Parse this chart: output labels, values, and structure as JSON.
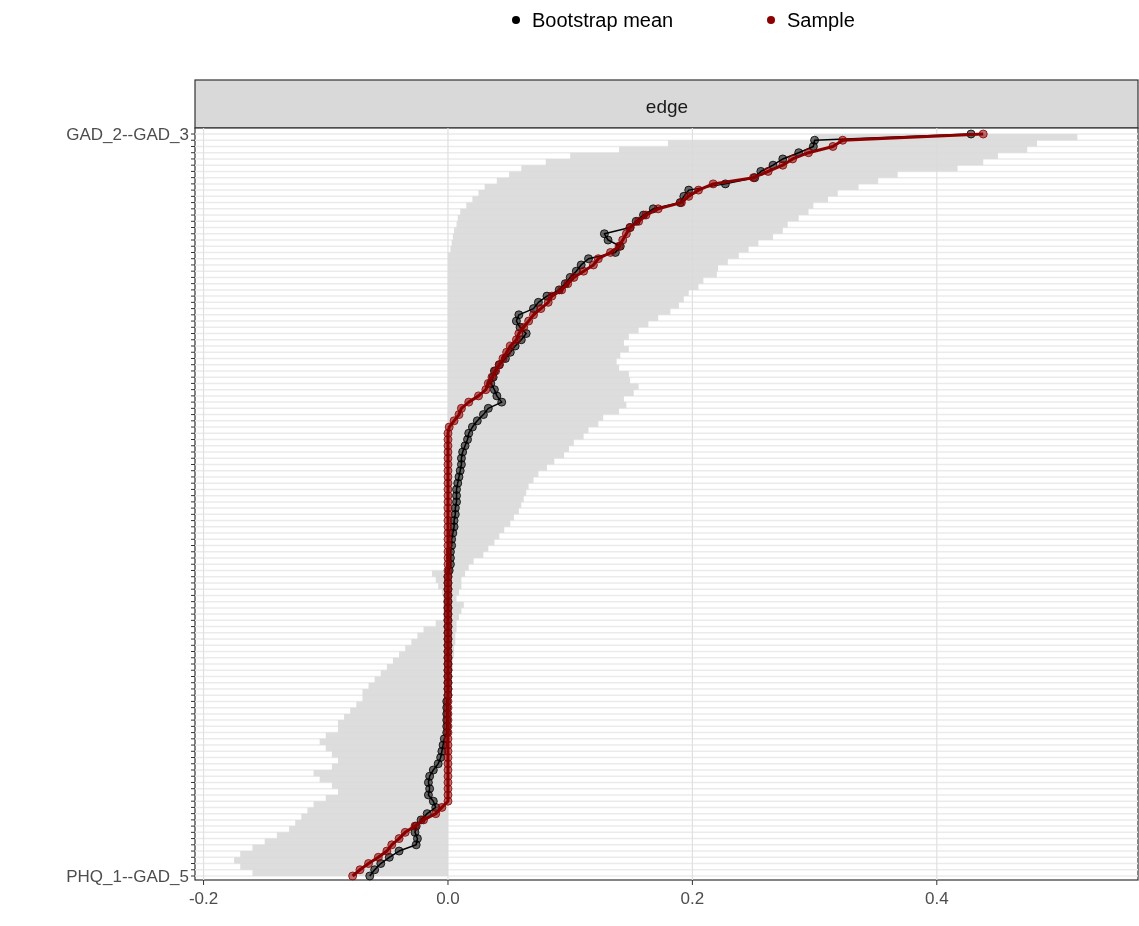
{
  "chart_data": {
    "type": "line",
    "title": "edge",
    "categories": [
      "GAD_2--GAD_3",
      null,
      null,
      null,
      null,
      null,
      null,
      null,
      null,
      null,
      null,
      null,
      null,
      null,
      null,
      null,
      null,
      null,
      null,
      null,
      null,
      null,
      null,
      null,
      null,
      null,
      null,
      null,
      null,
      null,
      null,
      null,
      null,
      null,
      null,
      null,
      null,
      null,
      null,
      null,
      null,
      null,
      null,
      null,
      null,
      null,
      null,
      null,
      null,
      null,
      null,
      null,
      null,
      null,
      null,
      null,
      null,
      null,
      null,
      null,
      null,
      null,
      null,
      null,
      null,
      null,
      null,
      null,
      null,
      null,
      null,
      null,
      null,
      null,
      null,
      null,
      null,
      null,
      null,
      null,
      null,
      null,
      null,
      null,
      null,
      null,
      null,
      null,
      null,
      null,
      null,
      null,
      null,
      null,
      null,
      null,
      null,
      null,
      null,
      null,
      null,
      null,
      null,
      null,
      null,
      null,
      null,
      null,
      null,
      null,
      null,
      null,
      null,
      null,
      null,
      null,
      null,
      null,
      null,
      "PHQ_1--GAD_5"
    ],
    "orientation": "horizontal",
    "series": [
      {
        "name": "Bootstrap mean",
        "color": "#000000",
        "values": [
          0.428,
          0.3,
          0.299,
          0.287,
          0.274,
          0.266,
          0.256,
          0.251,
          0.227,
          0.197,
          0.193,
          0.19,
          0.168,
          0.16,
          0.154,
          0.149,
          0.128,
          0.131,
          0.141,
          0.137,
          0.115,
          0.109,
          0.105,
          0.1,
          0.096,
          0.091,
          0.081,
          0.074,
          0.07,
          0.058,
          0.056,
          0.059,
          0.064,
          0.06,
          0.055,
          0.051,
          0.047,
          0.042,
          0.038,
          0.037,
          0.035,
          0.038,
          0.04,
          0.044,
          0.033,
          0.029,
          0.024,
          0.02,
          0.017,
          0.016,
          0.014,
          0.012,
          0.011,
          0.011,
          0.01,
          0.009,
          0.008,
          0.007,
          0.007,
          0.007,
          0.006,
          0.006,
          0.005,
          0.005,
          0.004,
          0.003,
          0.003,
          0.002,
          0.002,
          0.002,
          0.001,
          0,
          0,
          0,
          0,
          0,
          0,
          0,
          0,
          0,
          0,
          0,
          0,
          0,
          0,
          0,
          0,
          0,
          0,
          0,
          0,
          -0.001,
          -0.001,
          -0.001,
          -0.001,
          -0.001,
          -0.001,
          -0.003,
          -0.004,
          -0.005,
          -0.006,
          -0.008,
          -0.012,
          -0.015,
          -0.016,
          -0.015,
          -0.016,
          -0.012,
          -0.01,
          -0.017,
          -0.022,
          -0.026,
          -0.027,
          -0.025,
          -0.026,
          -0.04,
          -0.048,
          -0.055,
          -0.06,
          -0.064
        ],
        "lower": [
          0.33,
          0.3,
          0.18,
          0.14,
          0.1,
          0.08,
          0.06,
          0.05,
          0.04,
          0.03,
          0.025,
          0.02,
          0.015,
          0.01,
          0.008,
          0.007,
          0.005,
          0.004,
          0.003,
          0.002,
          0,
          0,
          0,
          0,
          0,
          0,
          0,
          0,
          0,
          0,
          0,
          0,
          0,
          0,
          0,
          0,
          0,
          0,
          0,
          0,
          0,
          0,
          0,
          0,
          0,
          0,
          0,
          0,
          0,
          0,
          0,
          0,
          0,
          0,
          0,
          0,
          0,
          0,
          0,
          0,
          0,
          0,
          0,
          0,
          0,
          0,
          0,
          0,
          0,
          0,
          0,
          -0.013,
          -0.01,
          -0.008,
          -0.005,
          -0.004,
          -0.004,
          -0.004,
          -0.004,
          -0.01,
          -0.02,
          -0.025,
          -0.03,
          -0.035,
          -0.04,
          -0.045,
          -0.05,
          -0.055,
          -0.06,
          -0.065,
          -0.07,
          -0.07,
          -0.075,
          -0.08,
          -0.085,
          -0.09,
          -0.09,
          -0.1,
          -0.105,
          -0.1,
          -0.095,
          -0.09,
          -0.095,
          -0.11,
          -0.105,
          -0.095,
          -0.09,
          -0.1,
          -0.11,
          -0.115,
          -0.12,
          -0.125,
          -0.13,
          -0.14,
          -0.15,
          -0.16,
          -0.17,
          -0.175,
          -0.17,
          -0.16
        ],
        "upper": [
          0.538,
          0.515,
          0.482,
          0.474,
          0.45,
          0.438,
          0.417,
          0.368,
          0.352,
          0.336,
          0.319,
          0.311,
          0.299,
          0.295,
          0.287,
          0.278,
          0.274,
          0.266,
          0.254,
          0.246,
          0.238,
          0.229,
          0.221,
          0.22,
          0.209,
          0.205,
          0.197,
          0.193,
          0.189,
          0.182,
          0.172,
          0.164,
          0.156,
          0.148,
          0.144,
          0.148,
          0.141,
          0.138,
          0.14,
          0.148,
          0.149,
          0.156,
          0.152,
          0.144,
          0.146,
          0.14,
          0.127,
          0.123,
          0.115,
          0.111,
          0.103,
          0.099,
          0.095,
          0.087,
          0.081,
          0.074,
          0.07,
          0.066,
          0.064,
          0.062,
          0.06,
          0.058,
          0.054,
          0.051,
          0.046,
          0.042,
          0.038,
          0.033,
          0.029,
          0.021,
          0.017,
          0.014,
          0.011,
          0.011,
          0.009,
          0.007,
          0.013,
          0.011,
          0.009,
          0.007,
          0.007,
          0.006,
          0.006,
          0.005,
          0.005,
          0.004,
          0.004,
          0.003,
          0.003,
          0.002,
          0.002,
          0,
          0,
          0,
          0,
          0,
          0,
          0,
          0,
          0,
          0,
          0,
          0,
          0,
          0,
          0,
          0,
          0,
          0,
          0,
          0,
          0,
          0,
          0,
          0,
          0,
          0,
          0,
          0,
          0
        ]
      },
      {
        "name": "Sample",
        "color": "#8b0000",
        "values": [
          0.438,
          0.323,
          0.315,
          0.295,
          0.282,
          0.274,
          0.262,
          0.25,
          0.217,
          0.205,
          0.197,
          0.191,
          0.172,
          0.162,
          0.156,
          0.149,
          0.146,
          0.143,
          0.14,
          0.133,
          0.123,
          0.119,
          0.111,
          0.103,
          0.098,
          0.093,
          0.085,
          0.082,
          0.076,
          0.07,
          0.066,
          0.062,
          0.058,
          0.056,
          0.051,
          0.048,
          0.045,
          0.042,
          0.039,
          0.036,
          0.033,
          0.031,
          0.025,
          0.017,
          0.011,
          0.009,
          0.005,
          0.001,
          0,
          0,
          0,
          0,
          0,
          0,
          0,
          0,
          0,
          0,
          0,
          0,
          0,
          0,
          0,
          0,
          0,
          0,
          0,
          0,
          0,
          0,
          0,
          0,
          0,
          0,
          0,
          0,
          0,
          0,
          0,
          0,
          0,
          0,
          0,
          0,
          0,
          0,
          0,
          0,
          0,
          0,
          0,
          0,
          0,
          0,
          0,
          0,
          0,
          0,
          0,
          0,
          0,
          0,
          0,
          0,
          0,
          0,
          0,
          0,
          -0.005,
          -0.01,
          -0.02,
          -0.027,
          -0.035,
          -0.04,
          -0.046,
          -0.05,
          -0.057,
          -0.065,
          -0.072,
          -0.078
        ]
      }
    ],
    "xlim": [
      -0.207,
      0.563
    ],
    "xticks": [
      -0.2,
      {
        "value": 0,
        "label": "0.0"
      },
      0.2,
      0.4
    ],
    "grid": true,
    "legend": "top",
    "marker": "circle",
    "line_style": "solid"
  }
}
